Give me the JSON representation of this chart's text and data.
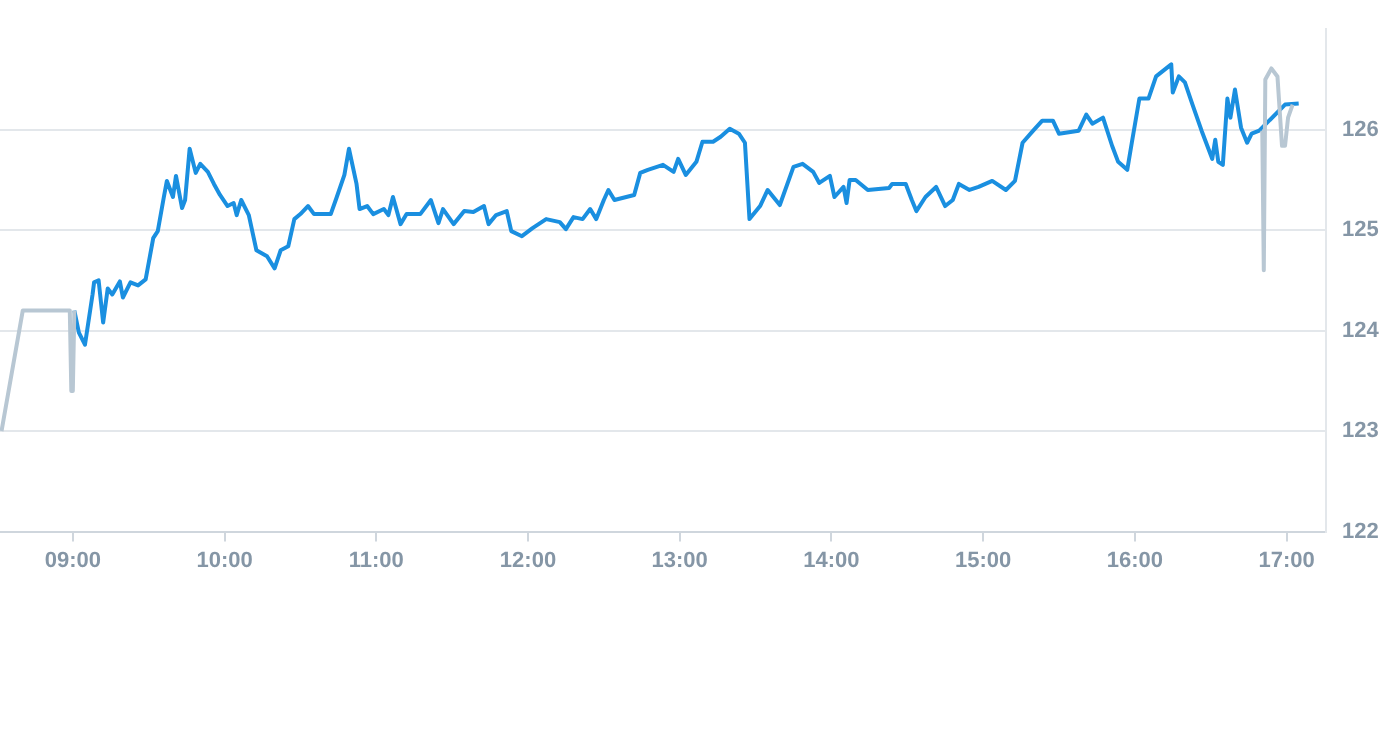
{
  "chart_data": {
    "type": "line",
    "xlim": [
      8.52,
      17.26
    ],
    "ylim": [
      122,
      127
    ],
    "xticks": [
      {
        "value": 9,
        "label": "09:00"
      },
      {
        "value": 10,
        "label": "10:00"
      },
      {
        "value": 11,
        "label": "11:00"
      },
      {
        "value": 12,
        "label": "12:00"
      },
      {
        "value": 13,
        "label": "13:00"
      },
      {
        "value": 14,
        "label": "14:00"
      },
      {
        "value": 15,
        "label": "15:00"
      },
      {
        "value": 16,
        "label": "16:00"
      },
      {
        "value": 17,
        "label": "17:00"
      }
    ],
    "yticks": [
      122,
      123,
      124,
      125,
      126
    ],
    "grid": "y",
    "legend": false,
    "marker": "none",
    "line_style": "solid",
    "series": [
      {
        "color": "#b8c7d3",
        "x": [
          8.53,
          8.67,
          8.98,
          8.99,
          9.0,
          9.01
        ],
        "values": [
          123.0,
          124.2,
          124.2,
          123.4,
          123.4,
          124.2
        ]
      },
      {
        "color": "#b8c7d3",
        "x": [
          16.84,
          16.85,
          16.86,
          16.9,
          16.94,
          16.97,
          16.99,
          17.01,
          17.04
        ],
        "values": [
          125.99,
          124.6,
          126.5,
          126.61,
          126.53,
          125.84,
          125.84,
          126.12,
          126.25
        ]
      },
      {
        "color": "#1a8fe0",
        "x": [
          9.01,
          9.04,
          9.08,
          9.13,
          9.14,
          9.17,
          9.2,
          9.23,
          9.26,
          9.31,
          9.33,
          9.38,
          9.43,
          9.48,
          9.53,
          9.56,
          9.6,
          9.62,
          9.66,
          9.68,
          9.72,
          9.74,
          9.77,
          9.81,
          9.84,
          9.89,
          9.93,
          9.97,
          10.02,
          10.06,
          10.08,
          10.11,
          10.16,
          10.21,
          10.28,
          10.33,
          10.37,
          10.42,
          10.46,
          10.5,
          10.55,
          10.59,
          10.7,
          10.74,
          10.79,
          10.82,
          10.87,
          10.89,
          10.94,
          10.98,
          11.05,
          11.08,
          11.11,
          11.16,
          11.2,
          11.29,
          11.36,
          11.41,
          11.44,
          11.51,
          11.58,
          11.64,
          11.71,
          11.74,
          11.79,
          11.86,
          11.89,
          11.96,
          12.03,
          12.12,
          12.21,
          12.25,
          12.3,
          12.36,
          12.41,
          12.45,
          12.5,
          12.53,
          12.57,
          12.7,
          12.74,
          12.79,
          12.89,
          12.96,
          12.99,
          13.04,
          13.11,
          13.15,
          13.22,
          13.27,
          13.33,
          13.39,
          13.43,
          13.46,
          13.53,
          13.58,
          13.66,
          13.75,
          13.81,
          13.88,
          13.92,
          13.99,
          14.02,
          14.08,
          14.1,
          14.12,
          14.16,
          14.24,
          14.38,
          14.4,
          14.49,
          14.53,
          14.56,
          14.62,
          14.69,
          14.75,
          14.8,
          14.84,
          14.91,
          14.97,
          15.06,
          15.15,
          15.21,
          15.26,
          15.33,
          15.39,
          15.46,
          15.5,
          15.63,
          15.68,
          15.72,
          15.79,
          15.85,
          15.89,
          15.95,
          15.98,
          16.03,
          16.09,
          16.14,
          16.19,
          16.24,
          16.25,
          16.29,
          16.33,
          16.38,
          16.44,
          16.51,
          16.53,
          16.55,
          16.58,
          16.61,
          16.63,
          16.66,
          16.7,
          16.74,
          16.77,
          16.82,
          16.99,
          17.08
        ],
        "values": [
          124.2,
          123.98,
          123.86,
          124.36,
          124.48,
          124.5,
          124.08,
          124.42,
          124.36,
          124.49,
          124.33,
          124.48,
          124.45,
          124.51,
          124.92,
          124.99,
          125.33,
          125.49,
          125.33,
          125.54,
          125.22,
          125.3,
          125.81,
          125.57,
          125.66,
          125.58,
          125.46,
          125.35,
          125.24,
          125.27,
          125.15,
          125.3,
          125.15,
          124.8,
          124.74,
          124.62,
          124.8,
          124.84,
          125.11,
          125.16,
          125.24,
          125.16,
          125.16,
          125.33,
          125.55,
          125.81,
          125.46,
          125.21,
          125.24,
          125.16,
          125.21,
          125.15,
          125.33,
          125.06,
          125.16,
          125.16,
          125.3,
          125.07,
          125.21,
          125.06,
          125.19,
          125.18,
          125.24,
          125.06,
          125.15,
          125.19,
          124.99,
          124.94,
          125.02,
          125.11,
          125.08,
          125.01,
          125.13,
          125.11,
          125.21,
          125.11,
          125.3,
          125.4,
          125.3,
          125.35,
          125.57,
          125.6,
          125.65,
          125.58,
          125.71,
          125.55,
          125.68,
          125.88,
          125.88,
          125.93,
          126.01,
          125.96,
          125.87,
          125.11,
          125.24,
          125.4,
          125.25,
          125.63,
          125.66,
          125.58,
          125.47,
          125.54,
          125.33,
          125.43,
          125.27,
          125.5,
          125.5,
          125.4,
          125.42,
          125.46,
          125.46,
          125.3,
          125.19,
          125.33,
          125.43,
          125.24,
          125.3,
          125.46,
          125.4,
          125.43,
          125.49,
          125.4,
          125.49,
          125.87,
          125.99,
          126.09,
          126.09,
          125.96,
          125.99,
          126.15,
          126.06,
          126.12,
          125.84,
          125.68,
          125.6,
          125.87,
          126.31,
          126.31,
          126.53,
          126.59,
          126.65,
          126.37,
          126.53,
          126.47,
          126.25,
          125.99,
          125.71,
          125.9,
          125.68,
          125.65,
          126.31,
          126.12,
          126.4,
          126.02,
          125.87,
          125.96,
          125.99,
          126.25,
          126.26
        ]
      }
    ]
  }
}
